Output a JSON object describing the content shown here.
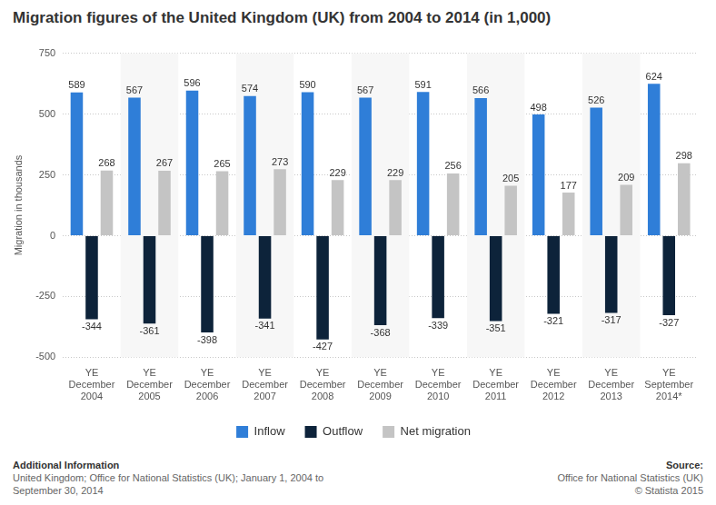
{
  "chart_data": {
    "type": "bar",
    "title": "Migration figures of the United Kingdom (UK) from 2004 to 2014 (in 1,000)",
    "y_label": "Migration in thousands",
    "categories": [
      "YE December 2004",
      "YE December 2005",
      "YE December 2006",
      "YE December 2007",
      "YE December 2008",
      "YE December 2009",
      "YE December 2010",
      "YE December 2011",
      "YE December 2012",
      "YE December 2013",
      "YE September 2014*"
    ],
    "series": [
      {
        "name": "Inflow",
        "color": "#2f7ed8",
        "values": [
          589,
          567,
          596,
          574,
          590,
          567,
          591,
          566,
          498,
          526,
          624
        ]
      },
      {
        "name": "Outflow",
        "color": "#0d233a",
        "values": [
          -344,
          -361,
          -398,
          -341,
          -427,
          -368,
          -339,
          -351,
          -321,
          -317,
          -327
        ]
      },
      {
        "name": "Net migration",
        "color": "#c4c4c4",
        "values": [
          268,
          267,
          265,
          273,
          229,
          229,
          256,
          205,
          177,
          209,
          298
        ]
      }
    ],
    "ylim": [
      -500,
      750
    ],
    "yticks": [
      -500,
      -250,
      0,
      250,
      500,
      750
    ],
    "grid": true,
    "legend": "bottom",
    "data_labels": true,
    "notes_title": "Additional Information",
    "notes": [
      "United Kingdom; Office for National Statistics (UK); January 1, 2004 to",
      "September 30, 2014"
    ],
    "source_title": "Source:",
    "source": [
      "Office for National Statistics (UK)",
      "© Statista 2015"
    ]
  }
}
